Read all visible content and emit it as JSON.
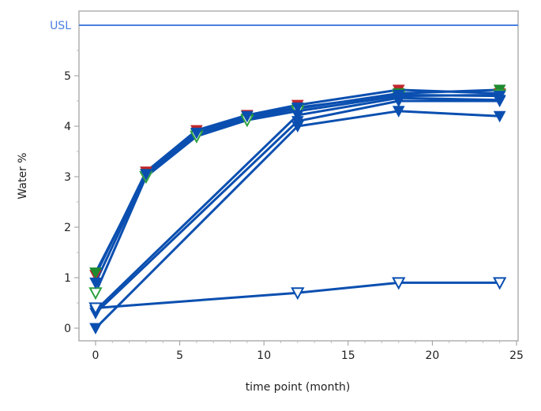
{
  "chart_data": {
    "type": "line",
    "title": "",
    "xlabel": "time point (month)",
    "ylabel": "Water %",
    "xlim": [
      -1,
      25
    ],
    "ylim": [
      -0.25,
      6.3
    ],
    "xticks": [
      0,
      5,
      10,
      15,
      20,
      25
    ],
    "yticks": [
      0,
      1,
      2,
      3,
      4,
      5
    ],
    "grid": false,
    "reference_lines": [
      {
        "label": "USL",
        "y": 6.0,
        "color": "#4a7fe0"
      }
    ],
    "line_color": "#0a4fb0",
    "series": [
      {
        "x": [
          0,
          3,
          6,
          9,
          12,
          18,
          24
        ],
        "y": [
          1.05,
          3.1,
          3.92,
          4.22,
          4.42,
          4.72,
          4.65
        ],
        "marker": "filled-down-triangle",
        "color": "#c0272d"
      },
      {
        "x": [
          0,
          3,
          6,
          9,
          12,
          18,
          24
        ],
        "y": [
          1.1,
          3.05,
          3.85,
          4.15,
          4.35,
          4.65,
          4.72
        ],
        "marker": "filled-down-triangle",
        "color": "#1e8a2e"
      },
      {
        "x": [
          0,
          3,
          6,
          9,
          12,
          18,
          24
        ],
        "y": [
          0.7,
          3.0,
          3.8,
          4.12,
          4.3,
          4.6,
          4.62
        ],
        "marker": "open-down-triangle",
        "color": "#2ea040"
      },
      {
        "x": [
          0,
          3,
          6,
          9,
          12,
          18,
          24
        ],
        "y": [
          0.9,
          3.05,
          3.87,
          4.2,
          4.37,
          4.62,
          4.6
        ],
        "marker": "filled-down-triangle",
        "color": "#0a4fb0"
      },
      {
        "x": [
          0,
          12,
          18,
          24
        ],
        "y": [
          0.35,
          4.22,
          4.56,
          4.52
        ],
        "marker": "filled-down-triangle",
        "color": "#0a4fb0"
      },
      {
        "x": [
          0,
          12,
          18,
          24
        ],
        "y": [
          0.3,
          4.1,
          4.5,
          4.5
        ],
        "marker": "filled-down-triangle",
        "color": "#0a4fb0"
      },
      {
        "x": [
          0,
          12,
          18,
          24
        ],
        "y": [
          0.0,
          4.0,
          4.3,
          4.2
        ],
        "marker": "filled-down-triangle",
        "color": "#0a4fb0"
      },
      {
        "x": [
          0,
          12,
          18,
          24
        ],
        "y": [
          0.4,
          0.7,
          0.9,
          0.9
        ],
        "marker": "open-down-triangle",
        "color": "#0a4fb0"
      }
    ]
  }
}
